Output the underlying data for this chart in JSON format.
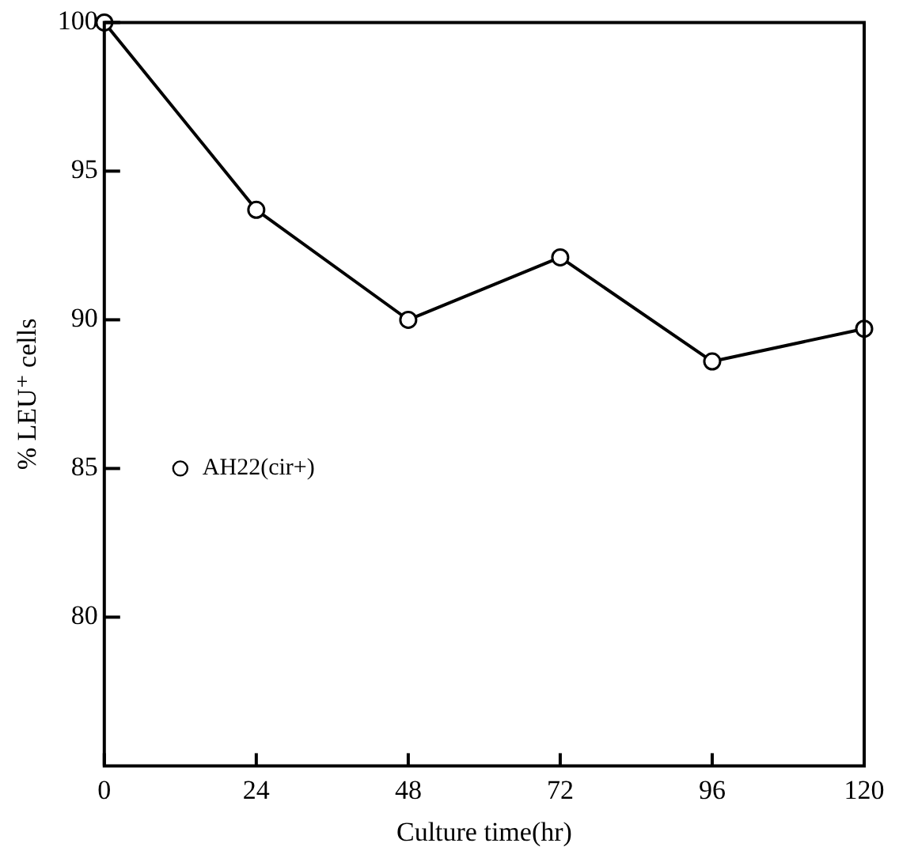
{
  "chart_data": {
    "type": "line",
    "xlabel": "Culture time(hr)",
    "ylabel": "% LEU⁺ cells",
    "x": [
      0,
      24,
      48,
      72,
      96,
      120
    ],
    "series": [
      {
        "name": "AH22(cir+)",
        "color": "#000000",
        "values": [
          100,
          93.7,
          90.0,
          92.1,
          88.6,
          89.7
        ]
      }
    ],
    "xlim": [
      0,
      120
    ],
    "xticks": [
      0,
      24,
      48,
      72,
      96,
      120
    ],
    "ylim": [
      75,
      100
    ],
    "yticks": [
      80,
      85,
      90,
      95,
      100
    ],
    "grid": false,
    "legend": "left",
    "marker": "circle",
    "line_style": "solid"
  }
}
